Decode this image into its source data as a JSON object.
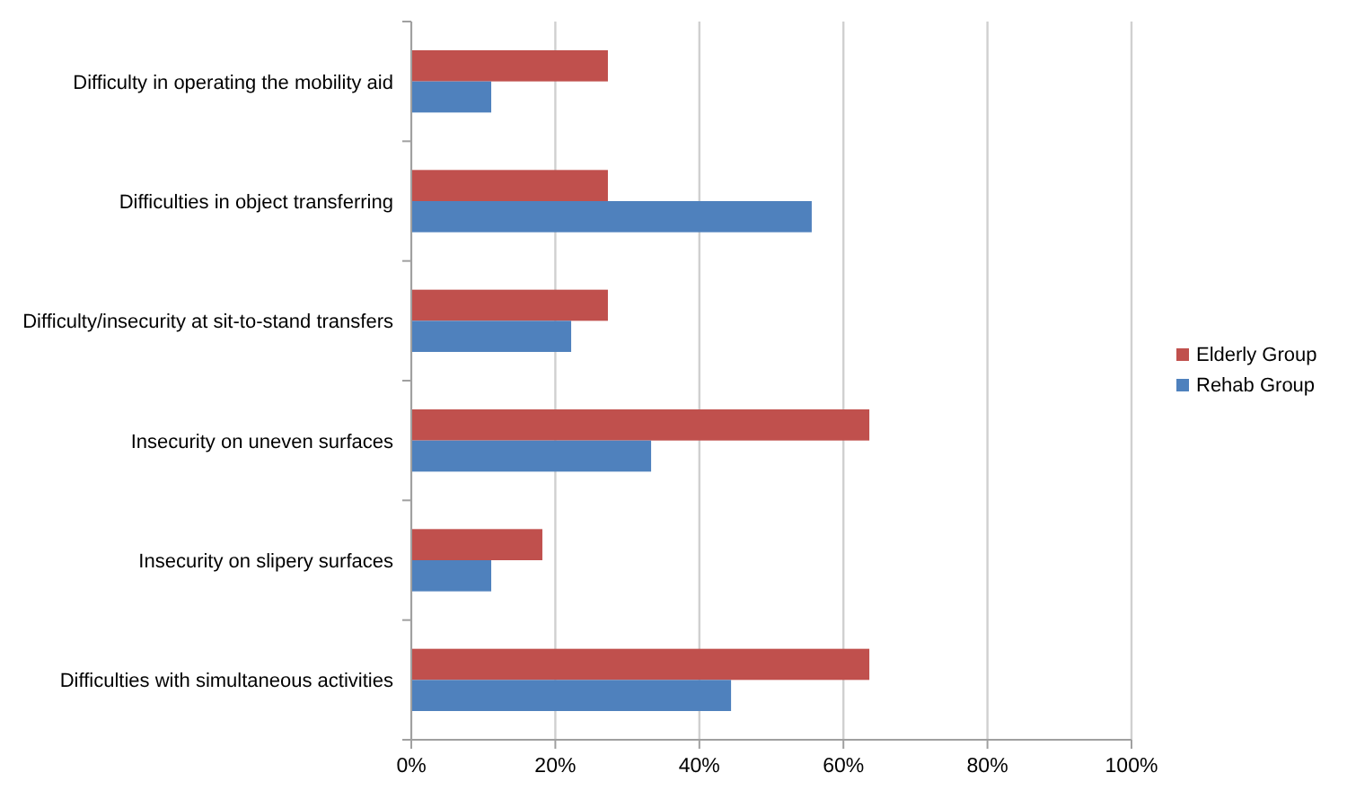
{
  "chart_data": {
    "type": "bar",
    "orientation": "horizontal",
    "categories": [
      "Difficulty in operating the mobility aid",
      "Difficulties in object transferring",
      "Difficulty/insecurity at sit-to-stand transfers",
      "Insecurity on uneven surfaces",
      "Insecurity on slipery surfaces",
      "Difficulties with simultaneous activities"
    ],
    "series": [
      {
        "name": "Elderly Group",
        "color": "#c0504d",
        "values": [
          27.3,
          27.3,
          27.3,
          63.6,
          18.2,
          63.6
        ]
      },
      {
        "name": "Rehab Group",
        "color": "#4f81bd",
        "values": [
          11.1,
          55.6,
          22.2,
          33.3,
          11.1,
          44.4
        ]
      }
    ],
    "xlim": [
      0,
      100
    ],
    "xticks": [
      {
        "value": 0,
        "label": "0%"
      },
      {
        "value": 20,
        "label": "20%"
      },
      {
        "value": 40,
        "label": "40%"
      },
      {
        "value": 60,
        "label": "60%"
      },
      {
        "value": 80,
        "label": "80%"
      },
      {
        "value": 100,
        "label": "100%"
      }
    ],
    "grid": "x",
    "legend": "right"
  }
}
